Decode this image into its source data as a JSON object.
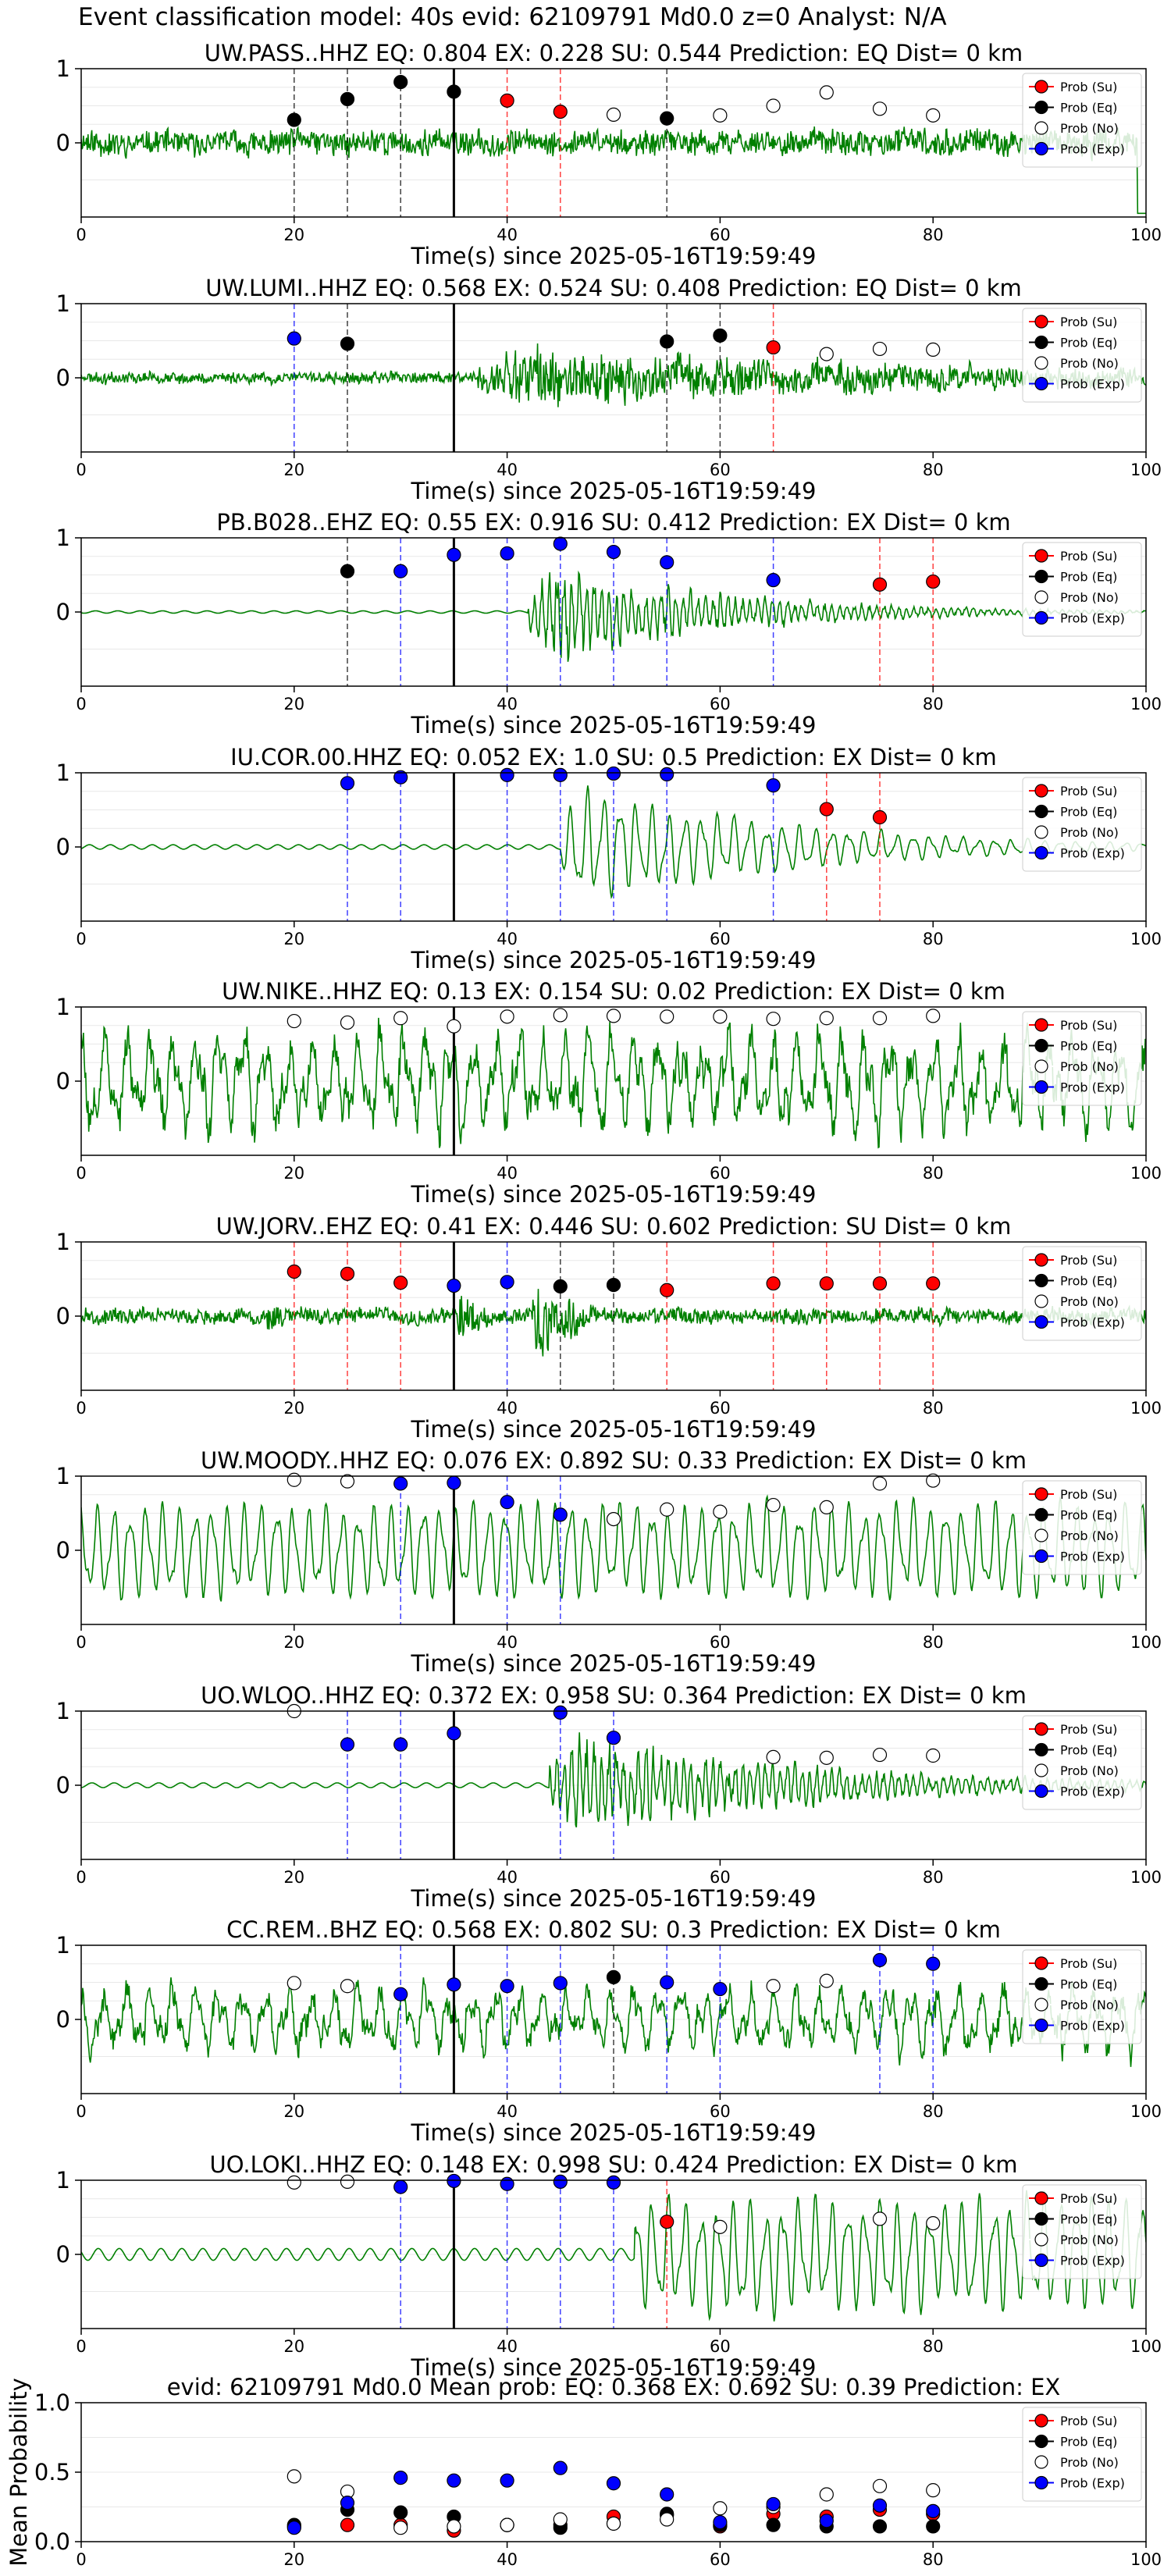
{
  "figure_title": "Event classification model: 40s evid: 62109791 Md0.0 z=0 Analyst: N/A",
  "legend_labels": [
    "Prob (Su)",
    "Prob (Eq)",
    "Prob (No)",
    "Prob (Exp)"
  ],
  "colors": {
    "waveform": "#008000",
    "su": "#ff0000",
    "eq": "#000000",
    "no": "#ffffff",
    "exp": "#0000ff",
    "origin_line": "#000000"
  },
  "chart_data": [
    {
      "type": "line",
      "title": "UW.PASS..HHZ   EQ: 0.804  EX: 0.228  SU: 0.544   Prediction: EQ    Dist= 0 km",
      "xlabel": "Time(s) since 2025-05-16T19:59:49",
      "xlim": [
        0,
        100
      ],
      "ylim": [
        -1,
        1
      ],
      "xticks": [
        0,
        20,
        40,
        60,
        80,
        100
      ],
      "yticks": [
        0,
        1
      ],
      "waveform": {
        "seed": 11,
        "style": "noisy",
        "onset": 0,
        "pre_amp": 0.26,
        "post_amp": 0.26,
        "decay": 0,
        "end_spike": true
      },
      "origin_time": 35,
      "markers": [
        {
          "x": 20,
          "y": 0.31,
          "class": "eq"
        },
        {
          "x": 25,
          "y": 0.59,
          "class": "eq"
        },
        {
          "x": 30,
          "y": 0.82,
          "class": "eq"
        },
        {
          "x": 35,
          "y": 0.69,
          "class": "eq"
        },
        {
          "x": 40,
          "y": 0.57,
          "class": "su"
        },
        {
          "x": 45,
          "y": 0.42,
          "class": "su"
        },
        {
          "x": 50,
          "y": 0.38,
          "class": "no"
        },
        {
          "x": 55,
          "y": 0.33,
          "class": "eq"
        },
        {
          "x": 60,
          "y": 0.37,
          "class": "no"
        },
        {
          "x": 65,
          "y": 0.5,
          "class": "no"
        },
        {
          "x": 70,
          "y": 0.68,
          "class": "no"
        },
        {
          "x": 75,
          "y": 0.46,
          "class": "no"
        },
        {
          "x": 80,
          "y": 0.37,
          "class": "no"
        }
      ]
    },
    {
      "type": "line",
      "title": "UW.LUMI..HHZ   EQ: 0.568  EX: 0.524  SU: 0.408   Prediction: EQ    Dist= 0 km",
      "xlabel": "Time(s) since 2025-05-16T19:59:49",
      "xlim": [
        0,
        100
      ],
      "ylim": [
        -1,
        1
      ],
      "xticks": [
        0,
        20,
        40,
        60,
        80,
        100
      ],
      "yticks": [
        0,
        1
      ],
      "waveform": {
        "seed": 23,
        "style": "noisy",
        "onset": 37,
        "pre_amp": 0.12,
        "post_amp": 0.65,
        "decay": 0.02
      },
      "origin_time": 35,
      "markers": [
        {
          "x": 20,
          "y": 0.53,
          "class": "exp"
        },
        {
          "x": 25,
          "y": 0.46,
          "class": "eq"
        },
        {
          "x": 55,
          "y": 0.49,
          "class": "eq"
        },
        {
          "x": 60,
          "y": 0.57,
          "class": "eq"
        },
        {
          "x": 65,
          "y": 0.41,
          "class": "su"
        },
        {
          "x": 70,
          "y": 0.32,
          "class": "no"
        },
        {
          "x": 75,
          "y": 0.39,
          "class": "no"
        },
        {
          "x": 80,
          "y": 0.38,
          "class": "no"
        }
      ]
    },
    {
      "type": "line",
      "title": "PB.B028..EHZ   EQ: 0.55  EX: 0.916  SU: 0.412   Prediction: EX    Dist= 0 km",
      "xlabel": "Time(s) since 2025-05-16T19:59:49",
      "xlim": [
        0,
        100
      ],
      "ylim": [
        -1,
        1
      ],
      "xticks": [
        0,
        20,
        40,
        60,
        80,
        100
      ],
      "yticks": [
        0,
        1
      ],
      "waveform": {
        "seed": 37,
        "style": "burst",
        "onset": 42,
        "pre_amp": 0.02,
        "post_amp": 0.95,
        "decay": 0.06
      },
      "origin_time": 35,
      "markers": [
        {
          "x": 25,
          "y": 0.55,
          "class": "eq"
        },
        {
          "x": 30,
          "y": 0.55,
          "class": "exp"
        },
        {
          "x": 35,
          "y": 0.77,
          "class": "exp"
        },
        {
          "x": 40,
          "y": 0.79,
          "class": "exp"
        },
        {
          "x": 45,
          "y": 0.92,
          "class": "exp"
        },
        {
          "x": 50,
          "y": 0.81,
          "class": "exp"
        },
        {
          "x": 55,
          "y": 0.67,
          "class": "exp"
        },
        {
          "x": 65,
          "y": 0.43,
          "class": "exp"
        },
        {
          "x": 75,
          "y": 0.37,
          "class": "su"
        },
        {
          "x": 80,
          "y": 0.41,
          "class": "su"
        }
      ]
    },
    {
      "type": "line",
      "title": "IU.COR.00.HHZ   EQ: 0.052  EX: 1.0  SU: 0.5   Prediction: EX    Dist= 0 km",
      "xlabel": "Time(s) since 2025-05-16T19:59:49",
      "xlim": [
        0,
        100
      ],
      "ylim": [
        -1,
        1
      ],
      "xticks": [
        0,
        20,
        40,
        60,
        80,
        100
      ],
      "yticks": [
        0,
        1
      ],
      "waveform": {
        "seed": 41,
        "style": "oscillating",
        "onset": 45,
        "pre_amp": 0.03,
        "post_amp": 1.0,
        "decay": 0.05
      },
      "origin_time": 35,
      "markers": [
        {
          "x": 25,
          "y": 0.86,
          "class": "exp"
        },
        {
          "x": 30,
          "y": 0.94,
          "class": "exp"
        },
        {
          "x": 40,
          "y": 0.97,
          "class": "exp"
        },
        {
          "x": 45,
          "y": 0.97,
          "class": "exp"
        },
        {
          "x": 50,
          "y": 0.99,
          "class": "exp"
        },
        {
          "x": 55,
          "y": 0.98,
          "class": "exp"
        },
        {
          "x": 65,
          "y": 0.83,
          "class": "exp"
        },
        {
          "x": 70,
          "y": 0.51,
          "class": "su"
        },
        {
          "x": 75,
          "y": 0.4,
          "class": "su"
        }
      ]
    },
    {
      "type": "line",
      "title": "UW.NIKE..HHZ   EQ: 0.13  EX: 0.154  SU: 0.02   Prediction: EX    Dist= 0 km",
      "xlabel": "Time(s) since 2025-05-16T19:59:49",
      "xlim": [
        0,
        100
      ],
      "ylim": [
        -1,
        1
      ],
      "xticks": [
        0,
        20,
        40,
        60,
        80,
        100
      ],
      "yticks": [
        0,
        1
      ],
      "waveform": {
        "seed": 53,
        "style": "mixed",
        "onset": 0,
        "pre_amp": 0.75,
        "post_amp": 0.75,
        "decay": 0
      },
      "origin_time": 35,
      "markers": [
        {
          "x": 20,
          "y": 0.81,
          "class": "no"
        },
        {
          "x": 25,
          "y": 0.79,
          "class": "no"
        },
        {
          "x": 30,
          "y": 0.85,
          "class": "no"
        },
        {
          "x": 35,
          "y": 0.74,
          "class": "no"
        },
        {
          "x": 40,
          "y": 0.87,
          "class": "no"
        },
        {
          "x": 45,
          "y": 0.89,
          "class": "no"
        },
        {
          "x": 50,
          "y": 0.88,
          "class": "no"
        },
        {
          "x": 55,
          "y": 0.87,
          "class": "no"
        },
        {
          "x": 60,
          "y": 0.87,
          "class": "no"
        },
        {
          "x": 65,
          "y": 0.84,
          "class": "no"
        },
        {
          "x": 70,
          "y": 0.85,
          "class": "no"
        },
        {
          "x": 75,
          "y": 0.85,
          "class": "no"
        },
        {
          "x": 80,
          "y": 0.88,
          "class": "no"
        }
      ]
    },
    {
      "type": "line",
      "title": "UW.JORV..EHZ   EQ: 0.41  EX: 0.446  SU: 0.602   Prediction: SU    Dist= 0 km",
      "xlabel": "Time(s) since 2025-05-16T19:59:49",
      "xlim": [
        0,
        100
      ],
      "ylim": [
        -1,
        1
      ],
      "xticks": [
        0,
        20,
        40,
        60,
        80,
        100
      ],
      "yticks": [
        0,
        1
      ],
      "waveform": {
        "seed": 67,
        "style": "noisy",
        "onset": 0,
        "pre_amp": 0.16,
        "post_amp": 0.16,
        "decay": 0,
        "bursts": [
          [
            18,
            0.3
          ],
          [
            36,
            0.55
          ],
          [
            43,
            0.95
          ],
          [
            46,
            0.5
          ]
        ]
      },
      "origin_time": 35,
      "markers": [
        {
          "x": 20,
          "y": 0.6,
          "class": "su"
        },
        {
          "x": 25,
          "y": 0.57,
          "class": "su"
        },
        {
          "x": 30,
          "y": 0.45,
          "class": "su"
        },
        {
          "x": 35,
          "y": 0.41,
          "class": "exp"
        },
        {
          "x": 40,
          "y": 0.46,
          "class": "exp"
        },
        {
          "x": 45,
          "y": 0.4,
          "class": "eq"
        },
        {
          "x": 50,
          "y": 0.42,
          "class": "eq"
        },
        {
          "x": 55,
          "y": 0.35,
          "class": "su"
        },
        {
          "x": 65,
          "y": 0.44,
          "class": "su"
        },
        {
          "x": 70,
          "y": 0.44,
          "class": "su"
        },
        {
          "x": 75,
          "y": 0.44,
          "class": "su"
        },
        {
          "x": 80,
          "y": 0.44,
          "class": "su"
        }
      ]
    },
    {
      "type": "line",
      "title": "UW.MOODY..HHZ   EQ: 0.076  EX: 0.892  SU: 0.33   Prediction: EX    Dist= 0 km",
      "xlabel": "Time(s) since 2025-05-16T19:59:49",
      "xlim": [
        0,
        100
      ],
      "ylim": [
        -1,
        1
      ],
      "xticks": [
        0,
        20,
        40,
        60,
        80,
        100
      ],
      "yticks": [
        0,
        1
      ],
      "waveform": {
        "seed": 79,
        "style": "oscillating",
        "onset": 0,
        "pre_amp": 0.55,
        "post_amp": 0.7,
        "decay": 0
      },
      "origin_time": 35,
      "markers": [
        {
          "x": 20,
          "y": 0.95,
          "class": "no"
        },
        {
          "x": 25,
          "y": 0.93,
          "class": "no"
        },
        {
          "x": 30,
          "y": 0.9,
          "class": "exp"
        },
        {
          "x": 35,
          "y": 0.91,
          "class": "exp"
        },
        {
          "x": 40,
          "y": 0.65,
          "class": "exp"
        },
        {
          "x": 45,
          "y": 0.48,
          "class": "exp"
        },
        {
          "x": 50,
          "y": 0.42,
          "class": "no"
        },
        {
          "x": 55,
          "y": 0.55,
          "class": "no"
        },
        {
          "x": 60,
          "y": 0.52,
          "class": "no"
        },
        {
          "x": 65,
          "y": 0.61,
          "class": "no"
        },
        {
          "x": 70,
          "y": 0.58,
          "class": "no"
        },
        {
          "x": 75,
          "y": 0.9,
          "class": "no"
        },
        {
          "x": 80,
          "y": 0.94,
          "class": "no"
        }
      ]
    },
    {
      "type": "line",
      "title": "UO.WLOO..HHZ   EQ: 0.372  EX: 0.958  SU: 0.364   Prediction: EX    Dist= 0 km",
      "xlabel": "Time(s) since 2025-05-16T19:59:49",
      "xlim": [
        0,
        100
      ],
      "ylim": [
        -1,
        1
      ],
      "xticks": [
        0,
        20,
        40,
        60,
        80,
        100
      ],
      "yticks": [
        0,
        1
      ],
      "waveform": {
        "seed": 83,
        "style": "burst",
        "onset": 44,
        "pre_amp": 0.04,
        "post_amp": 1.0,
        "decay": 0.045
      },
      "origin_time": 35,
      "markers": [
        {
          "x": 20,
          "y": 1.0,
          "class": "no"
        },
        {
          "x": 25,
          "y": 0.55,
          "class": "exp"
        },
        {
          "x": 30,
          "y": 0.55,
          "class": "exp"
        },
        {
          "x": 35,
          "y": 0.7,
          "class": "exp"
        },
        {
          "x": 45,
          "y": 0.98,
          "class": "exp"
        },
        {
          "x": 50,
          "y": 0.64,
          "class": "exp"
        },
        {
          "x": 65,
          "y": 0.38,
          "class": "no"
        },
        {
          "x": 70,
          "y": 0.37,
          "class": "no"
        },
        {
          "x": 75,
          "y": 0.41,
          "class": "no"
        },
        {
          "x": 80,
          "y": 0.4,
          "class": "no"
        }
      ]
    },
    {
      "type": "line",
      "title": "CC.REM..BHZ   EQ: 0.568  EX: 0.802  SU: 0.3   Prediction: EX    Dist= 0 km",
      "xlabel": "Time(s) since 2025-05-16T19:59:49",
      "xlim": [
        0,
        100
      ],
      "ylim": [
        -1,
        1
      ],
      "xticks": [
        0,
        20,
        40,
        60,
        80,
        100
      ],
      "yticks": [
        0,
        1
      ],
      "waveform": {
        "seed": 97,
        "style": "mixed",
        "onset": 0,
        "pre_amp": 0.5,
        "post_amp": 0.5,
        "decay": 0,
        "bursts": [
          [
            92,
            0.7
          ]
        ]
      },
      "origin_time": 35,
      "markers": [
        {
          "x": 20,
          "y": 0.49,
          "class": "no"
        },
        {
          "x": 25,
          "y": 0.45,
          "class": "no"
        },
        {
          "x": 30,
          "y": 0.34,
          "class": "exp"
        },
        {
          "x": 35,
          "y": 0.47,
          "class": "exp"
        },
        {
          "x": 40,
          "y": 0.45,
          "class": "exp"
        },
        {
          "x": 45,
          "y": 0.49,
          "class": "exp"
        },
        {
          "x": 50,
          "y": 0.57,
          "class": "eq"
        },
        {
          "x": 55,
          "y": 0.5,
          "class": "exp"
        },
        {
          "x": 60,
          "y": 0.41,
          "class": "exp"
        },
        {
          "x": 65,
          "y": 0.45,
          "class": "no"
        },
        {
          "x": 70,
          "y": 0.52,
          "class": "no"
        },
        {
          "x": 75,
          "y": 0.8,
          "class": "exp"
        },
        {
          "x": 80,
          "y": 0.75,
          "class": "exp"
        }
      ]
    },
    {
      "type": "line",
      "title": "UO.LOKI..HHZ   EQ: 0.148  EX: 0.998  SU: 0.424   Prediction: EX    Dist= 0 km",
      "xlabel": "Time(s) since 2025-05-16T19:59:49",
      "xlim": [
        0,
        100
      ],
      "ylim": [
        -1,
        1
      ],
      "xticks": [
        0,
        20,
        40,
        60,
        80,
        100
      ],
      "yticks": [
        0,
        1
      ],
      "waveform": {
        "seed": 109,
        "style": "oscillating",
        "onset": 52,
        "pre_amp": 0.08,
        "post_amp": 0.85,
        "decay": 0.0
      },
      "origin_time": 35,
      "markers": [
        {
          "x": 20,
          "y": 0.97,
          "class": "no"
        },
        {
          "x": 25,
          "y": 0.98,
          "class": "no"
        },
        {
          "x": 30,
          "y": 0.91,
          "class": "exp"
        },
        {
          "x": 35,
          "y": 0.99,
          "class": "exp"
        },
        {
          "x": 40,
          "y": 0.95,
          "class": "exp"
        },
        {
          "x": 45,
          "y": 0.98,
          "class": "exp"
        },
        {
          "x": 50,
          "y": 0.97,
          "class": "exp"
        },
        {
          "x": 55,
          "y": 0.44,
          "class": "su"
        },
        {
          "x": 60,
          "y": 0.37,
          "class": "no"
        },
        {
          "x": 75,
          "y": 0.48,
          "class": "no"
        },
        {
          "x": 80,
          "y": 0.42,
          "class": "no"
        }
      ]
    },
    {
      "type": "scatter",
      "title": "evid: 62109791   Md0.0   Mean prob:    EQ: 0.368  EX: 0.692  SU: 0.39   Prediction: EX",
      "xlabel": "",
      "ylabel": "Mean Probability",
      "xlim": [
        0,
        100
      ],
      "ylim": [
        0,
        1
      ],
      "xticks": [
        0,
        20,
        40,
        60,
        80,
        100
      ],
      "yticks": [
        0.0,
        0.5,
        1.0
      ],
      "series": [
        {
          "name": "Prob (Su)",
          "class": "su",
          "x": [
            20,
            25,
            30,
            35,
            40,
            45,
            50,
            55,
            60,
            65,
            70,
            75,
            80
          ],
          "y": [
            0.11,
            0.12,
            0.12,
            0.08,
            0.12,
            0.12,
            0.18,
            0.19,
            0.11,
            0.2,
            0.18,
            0.23,
            0.2
          ]
        },
        {
          "name": "Prob (Eq)",
          "class": "eq",
          "x": [
            20,
            25,
            30,
            35,
            40,
            45,
            50,
            55,
            60,
            65,
            70,
            75,
            80
          ],
          "y": [
            0.12,
            0.23,
            0.21,
            0.18,
            0.12,
            0.1,
            0.13,
            0.2,
            0.12,
            0.12,
            0.11,
            0.11,
            0.11
          ]
        },
        {
          "name": "Prob (No)",
          "class": "no",
          "x": [
            20,
            25,
            30,
            35,
            40,
            45,
            50,
            55,
            60,
            65,
            70,
            75,
            80
          ],
          "y": [
            0.47,
            0.36,
            0.1,
            0.11,
            0.12,
            0.16,
            0.13,
            0.16,
            0.24,
            0.25,
            0.34,
            0.4,
            0.37
          ]
        },
        {
          "name": "Prob (Exp)",
          "class": "exp",
          "x": [
            20,
            25,
            30,
            35,
            40,
            45,
            50,
            55,
            60,
            65,
            70,
            75,
            80
          ],
          "y": [
            0.1,
            0.28,
            0.46,
            0.44,
            0.44,
            0.53,
            0.42,
            0.34,
            0.14,
            0.27,
            0.15,
            0.26,
            0.22
          ]
        }
      ]
    }
  ]
}
